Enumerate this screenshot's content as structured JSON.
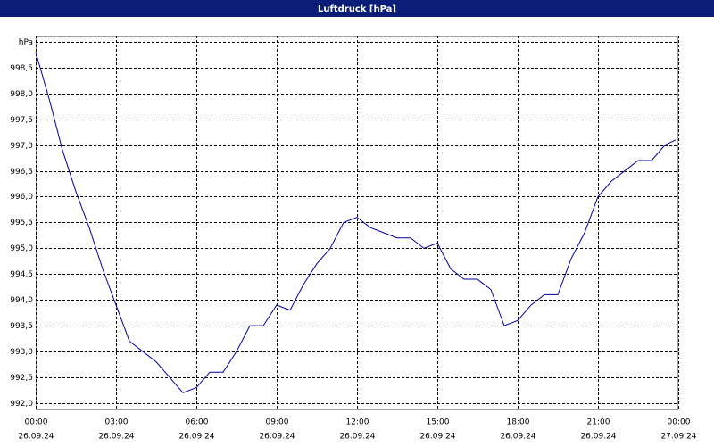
{
  "chart_data": {
    "type": "line",
    "title": "Luftdruck [hPa]",
    "x": [
      0,
      0.5,
      1,
      1.5,
      2,
      2.5,
      3,
      3.5,
      4,
      4.5,
      5,
      5.5,
      6,
      6.5,
      7,
      7.5,
      8,
      8.5,
      9,
      9.5,
      10,
      10.5,
      11,
      11.5,
      12,
      12.5,
      13,
      13.5,
      14,
      14.5,
      15,
      15.5,
      16,
      16.5,
      17,
      17.5,
      18,
      18.5,
      19,
      19.5,
      20,
      20.5,
      21,
      21.5,
      22,
      22.5,
      23,
      23.5,
      23.9
    ],
    "series": [
      {
        "name": "Luftdruck",
        "color": "#0000a0",
        "values": [
          998.8,
          997.9,
          996.9,
          996.1,
          995.4,
          994.6,
          993.9,
          993.2,
          993.0,
          992.8,
          992.5,
          992.2,
          992.3,
          992.6,
          992.6,
          993.0,
          993.5,
          993.5,
          993.9,
          993.8,
          994.3,
          994.7,
          995.0,
          995.5,
          995.6,
          995.4,
          995.3,
          995.2,
          995.2,
          995.0,
          995.1,
          994.6,
          994.4,
          994.4,
          994.2,
          993.5,
          993.6,
          993.9,
          994.1,
          994.1,
          994.8,
          995.3,
          996.0,
          996.3,
          996.5,
          996.7,
          996.7,
          997.0,
          997.1
        ]
      }
    ],
    "xlim": [
      0,
      24
    ],
    "xticks": [
      {
        "value": 0,
        "label": [
          "00:00",
          "26.09.24"
        ]
      },
      {
        "value": 3,
        "label": [
          "03:00",
          "26.09.24"
        ]
      },
      {
        "value": 6,
        "label": [
          "06:00",
          "26.09.24"
        ]
      },
      {
        "value": 9,
        "label": [
          "09:00",
          "26.09.24"
        ]
      },
      {
        "value": 12,
        "label": [
          "12:00",
          "26.09.24"
        ]
      },
      {
        "value": 15,
        "label": [
          "15:00",
          "26.09.24"
        ]
      },
      {
        "value": 18,
        "label": [
          "18:00",
          "26.09.24"
        ]
      },
      {
        "value": 21,
        "label": [
          "21:00",
          "26.09.24"
        ]
      },
      {
        "value": 24,
        "label": [
          "00:00",
          "27.09.24"
        ]
      }
    ],
    "ylim": [
      991.86,
      999.12
    ],
    "yticks": [
      {
        "value": 992,
        "label": "992,0"
      },
      {
        "value": 992.5,
        "label": "992,5"
      },
      {
        "value": 993,
        "label": "993,0"
      },
      {
        "value": 993.5,
        "label": "993,5"
      },
      {
        "value": 994,
        "label": "994,0"
      },
      {
        "value": 994.5,
        "label": "994,5"
      },
      {
        "value": 995,
        "label": "995,0"
      },
      {
        "value": 995.5,
        "label": "995,5"
      },
      {
        "value": 996,
        "label": "996,0"
      },
      {
        "value": 996.5,
        "label": "996,5"
      },
      {
        "value": 997,
        "label": "997,0"
      },
      {
        "value": 997.5,
        "label": "997,5"
      },
      {
        "value": 998,
        "label": "998,0"
      },
      {
        "value": 998.5,
        "label": "998,5"
      },
      {
        "value": 999,
        "label": "hPa"
      }
    ],
    "grid": true
  }
}
